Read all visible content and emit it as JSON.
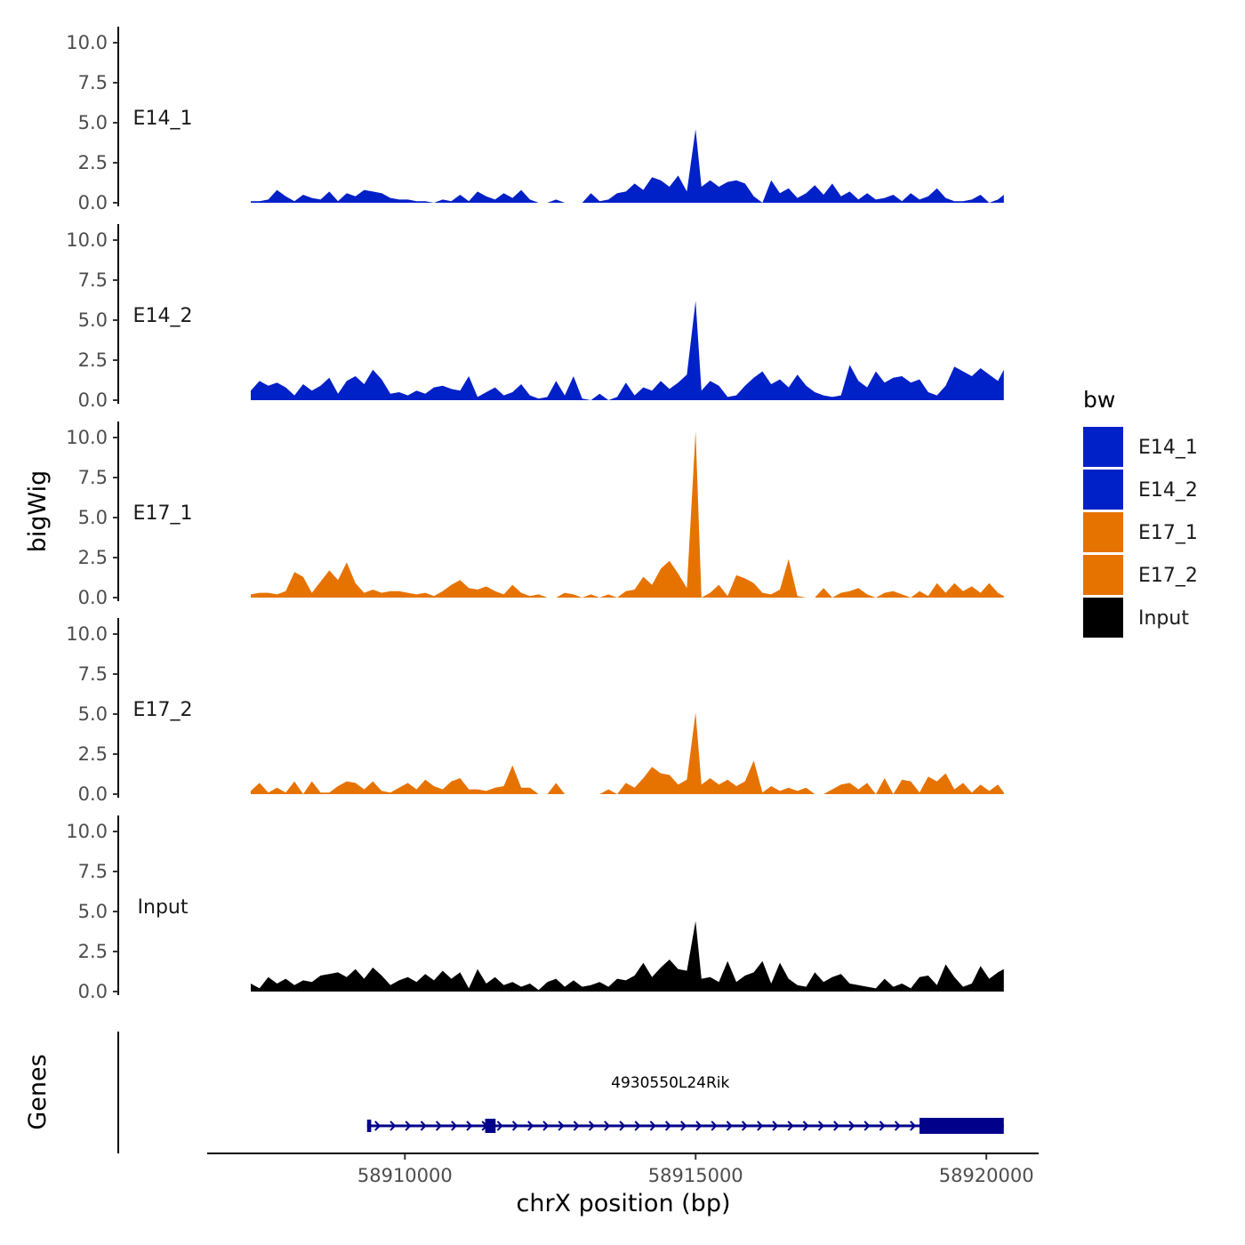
{
  "chart_data": {
    "type": "area",
    "subtype": "genome-browser-coverage-tracks",
    "ylabel": "bigWig",
    "xlabel": "chrX position (bp)",
    "gene_track_label": "Genes",
    "ylim": [
      0,
      10.5
    ],
    "yticks": [
      0,
      2.5,
      5,
      7.5,
      10
    ],
    "ytick_labels": [
      "0.0",
      "2.5",
      "5.0",
      "7.5",
      "10.0"
    ],
    "xlim": [
      58906600,
      58920900
    ],
    "xticks": [
      58910000,
      58915000,
      58920000
    ],
    "xtick_labels": [
      "58910000",
      "58915000",
      "58920000"
    ],
    "legend": {
      "title": "bw",
      "position": "right",
      "entries": [
        {
          "label": "E14_1",
          "color": "#0020c8"
        },
        {
          "label": "E14_2",
          "color": "#0020c8"
        },
        {
          "label": "E17_1",
          "color": "#e67300"
        },
        {
          "label": "E17_2",
          "color": "#e67300"
        },
        {
          "label": "Input",
          "color": "#000000"
        }
      ]
    },
    "series": [
      {
        "name": "E14_1",
        "color": "#0020c8",
        "x": [
          58907350,
          58907500,
          58907650,
          58907800,
          58907950,
          58908100,
          58908250,
          58908400,
          58908550,
          58908700,
          58908850,
          58909000,
          58909150,
          58909300,
          58909450,
          58909600,
          58909750,
          58909900,
          58910050,
          58910200,
          58910350,
          58910500,
          58910650,
          58910800,
          58910950,
          58911100,
          58911250,
          58911400,
          58911550,
          58911700,
          58911850,
          58912000,
          58912150,
          58912300,
          58912450,
          58912600,
          58912750,
          58912900,
          58913050,
          58913200,
          58913350,
          58913500,
          58913650,
          58913800,
          58913950,
          58914100,
          58914250,
          58914400,
          58914550,
          58914700,
          58914850,
          58915000,
          58915100,
          58915250,
          58915400,
          58915550,
          58915700,
          58915850,
          58916000,
          58916150,
          58916300,
          58916450,
          58916600,
          58916750,
          58916900,
          58917050,
          58917200,
          58917350,
          58917500,
          58917650,
          58917800,
          58917950,
          58918100,
          58918250,
          58918400,
          58918550,
          58918700,
          58918850,
          58919000,
          58919150,
          58919300,
          58919450,
          58919600,
          58919750,
          58919900,
          58920050,
          58920200,
          58920300
        ],
        "values": [
          0.1,
          0.1,
          0.2,
          0.8,
          0.4,
          0.1,
          0.5,
          0.3,
          0.2,
          0.7,
          0.1,
          0.6,
          0.4,
          0.8,
          0.7,
          0.6,
          0.3,
          0.2,
          0.2,
          0.1,
          0.1,
          0.0,
          0.2,
          0.1,
          0.5,
          0.1,
          0.7,
          0.4,
          0.2,
          0.6,
          0.3,
          0.8,
          0.2,
          0.0,
          0.0,
          0.2,
          0.0,
          0.0,
          0.0,
          0.6,
          0.1,
          0.2,
          0.6,
          0.7,
          1.2,
          0.8,
          1.6,
          1.4,
          1.0,
          1.7,
          0.7,
          4.6,
          1.0,
          1.4,
          1.0,
          1.3,
          1.4,
          1.2,
          0.4,
          0.0,
          1.4,
          0.6,
          0.9,
          0.3,
          0.6,
          1.1,
          0.5,
          1.2,
          0.4,
          0.7,
          0.2,
          0.6,
          0.2,
          0.3,
          0.5,
          0.1,
          0.6,
          0.2,
          0.4,
          0.9,
          0.3,
          0.1,
          0.1,
          0.2,
          0.5,
          0.0,
          0.2,
          0.5
        ]
      },
      {
        "name": "E14_2",
        "color": "#0020c8",
        "x": [
          58907350,
          58907500,
          58907650,
          58907800,
          58907950,
          58908100,
          58908250,
          58908400,
          58908550,
          58908700,
          58908850,
          58909000,
          58909150,
          58909300,
          58909450,
          58909600,
          58909750,
          58909900,
          58910050,
          58910200,
          58910350,
          58910500,
          58910650,
          58910800,
          58910950,
          58911100,
          58911250,
          58911400,
          58911550,
          58911700,
          58911850,
          58912000,
          58912150,
          58912300,
          58912450,
          58912600,
          58912750,
          58912900,
          58913050,
          58913200,
          58913350,
          58913500,
          58913650,
          58913800,
          58913950,
          58914100,
          58914250,
          58914400,
          58914550,
          58914700,
          58914850,
          58915000,
          58915100,
          58915250,
          58915400,
          58915550,
          58915700,
          58915850,
          58916000,
          58916150,
          58916300,
          58916450,
          58916600,
          58916750,
          58916900,
          58917050,
          58917200,
          58917350,
          58917500,
          58917650,
          58917800,
          58917950,
          58918100,
          58918250,
          58918400,
          58918550,
          58918700,
          58918850,
          58919000,
          58919150,
          58919300,
          58919450,
          58919600,
          58919750,
          58919900,
          58920050,
          58920200,
          58920300
        ],
        "values": [
          0.6,
          1.2,
          0.9,
          1.1,
          0.8,
          0.3,
          1.0,
          0.6,
          0.9,
          1.4,
          0.4,
          1.2,
          1.5,
          1.0,
          1.9,
          1.3,
          0.4,
          0.5,
          0.3,
          0.6,
          0.4,
          0.8,
          0.9,
          0.7,
          0.6,
          1.5,
          0.2,
          0.5,
          0.8,
          0.3,
          0.5,
          1.0,
          0.3,
          0.1,
          0.2,
          1.2,
          0.3,
          1.5,
          0.1,
          0.0,
          0.4,
          0.0,
          0.2,
          1.1,
          0.3,
          0.8,
          0.6,
          1.2,
          0.7,
          1.1,
          1.6,
          6.2,
          0.6,
          1.2,
          0.9,
          0.2,
          0.3,
          0.9,
          1.4,
          1.8,
          1.0,
          1.3,
          0.8,
          1.6,
          0.9,
          0.5,
          0.3,
          0.2,
          0.3,
          2.2,
          1.2,
          0.8,
          1.8,
          1.1,
          1.4,
          1.5,
          1.1,
          1.3,
          0.5,
          0.3,
          0.9,
          2.1,
          1.8,
          1.5,
          2.0,
          1.6,
          1.2,
          1.9
        ]
      },
      {
        "name": "E17_1",
        "color": "#e67300",
        "x": [
          58907350,
          58907500,
          58907650,
          58907800,
          58907950,
          58908100,
          58908250,
          58908400,
          58908550,
          58908700,
          58908850,
          58909000,
          58909150,
          58909300,
          58909450,
          58909600,
          58909750,
          58909900,
          58910050,
          58910200,
          58910350,
          58910500,
          58910650,
          58910800,
          58910950,
          58911100,
          58911250,
          58911400,
          58911550,
          58911700,
          58911850,
          58912000,
          58912150,
          58912300,
          58912450,
          58912600,
          58912750,
          58912900,
          58913050,
          58913200,
          58913350,
          58913500,
          58913650,
          58913800,
          58913950,
          58914100,
          58914250,
          58914400,
          58914550,
          58914700,
          58914850,
          58915000,
          58915100,
          58915250,
          58915400,
          58915550,
          58915700,
          58915850,
          58916000,
          58916150,
          58916300,
          58916450,
          58916600,
          58916750,
          58916900,
          58917050,
          58917200,
          58917350,
          58917500,
          58917650,
          58917800,
          58917950,
          58918100,
          58918250,
          58918400,
          58918550,
          58918700,
          58918850,
          58919000,
          58919150,
          58919300,
          58919450,
          58919600,
          58919750,
          58919900,
          58920050,
          58920200,
          58920300
        ],
        "values": [
          0.2,
          0.3,
          0.3,
          0.2,
          0.4,
          1.6,
          1.3,
          0.3,
          1.0,
          1.7,
          1.1,
          2.2,
          0.9,
          0.3,
          0.5,
          0.3,
          0.4,
          0.4,
          0.3,
          0.2,
          0.3,
          0.1,
          0.4,
          0.8,
          1.1,
          0.6,
          0.5,
          0.7,
          0.4,
          0.2,
          0.8,
          0.3,
          0.1,
          0.2,
          0.0,
          0.0,
          0.3,
          0.2,
          0.0,
          0.2,
          0.0,
          0.2,
          0.0,
          0.4,
          0.5,
          1.3,
          0.8,
          1.8,
          2.3,
          1.5,
          0.6,
          10.4,
          0.0,
          0.3,
          0.8,
          0.1,
          1.4,
          1.2,
          0.9,
          0.3,
          0.2,
          0.5,
          2.4,
          0.1,
          0.0,
          0.0,
          0.6,
          0.0,
          0.3,
          0.4,
          0.6,
          0.2,
          0.0,
          0.3,
          0.4,
          0.2,
          0.0,
          0.4,
          0.1,
          0.9,
          0.3,
          0.9,
          0.4,
          0.7,
          0.3,
          0.9,
          0.3,
          0.1
        ]
      },
      {
        "name": "E17_2",
        "color": "#e67300",
        "x": [
          58907350,
          58907500,
          58907650,
          58907800,
          58907950,
          58908100,
          58908250,
          58908400,
          58908550,
          58908700,
          58908850,
          58909000,
          58909150,
          58909300,
          58909450,
          58909600,
          58909750,
          58909900,
          58910050,
          58910200,
          58910350,
          58910500,
          58910650,
          58910800,
          58910950,
          58911100,
          58911250,
          58911400,
          58911550,
          58911700,
          58911850,
          58912000,
          58912150,
          58912300,
          58912450,
          58912600,
          58912750,
          58912900,
          58913050,
          58913200,
          58913350,
          58913500,
          58913650,
          58913800,
          58913950,
          58914100,
          58914250,
          58914400,
          58914550,
          58914700,
          58914850,
          58915000,
          58915100,
          58915250,
          58915400,
          58915550,
          58915700,
          58915850,
          58916000,
          58916150,
          58916300,
          58916450,
          58916600,
          58916750,
          58916900,
          58917050,
          58917200,
          58917350,
          58917500,
          58917650,
          58917800,
          58917950,
          58918100,
          58918250,
          58918400,
          58918550,
          58918700,
          58918850,
          58919000,
          58919150,
          58919300,
          58919450,
          58919600,
          58919750,
          58919900,
          58920050,
          58920200,
          58920300
        ],
        "values": [
          0.2,
          0.7,
          0.1,
          0.4,
          0.1,
          0.8,
          0.0,
          0.8,
          0.1,
          0.1,
          0.5,
          0.8,
          0.7,
          0.3,
          0.8,
          0.2,
          0.1,
          0.4,
          0.7,
          0.3,
          0.9,
          0.5,
          0.3,
          0.8,
          1.0,
          0.3,
          0.3,
          0.2,
          0.4,
          0.5,
          1.8,
          0.4,
          0.4,
          0.0,
          0.0,
          0.7,
          0.0,
          0.0,
          0.0,
          0.0,
          0.0,
          0.3,
          0.0,
          0.7,
          0.4,
          1.0,
          1.7,
          1.3,
          1.2,
          0.6,
          0.9,
          5.1,
          0.6,
          1.0,
          0.6,
          0.9,
          0.5,
          0.8,
          2.1,
          0.1,
          0.5,
          0.2,
          0.4,
          0.2,
          0.4,
          0.0,
          0.0,
          0.3,
          0.6,
          0.7,
          0.3,
          0.7,
          0.0,
          1.0,
          0.0,
          0.9,
          0.8,
          0.1,
          1.1,
          0.8,
          1.3,
          0.3,
          0.7,
          0.1,
          0.6,
          0.2,
          0.6,
          0.1
        ]
      },
      {
        "name": "Input",
        "color": "#000000",
        "x": [
          58907350,
          58907500,
          58907650,
          58907800,
          58907950,
          58908100,
          58908250,
          58908400,
          58908550,
          58908700,
          58908850,
          58909000,
          58909150,
          58909300,
          58909450,
          58909600,
          58909750,
          58909900,
          58910050,
          58910200,
          58910350,
          58910500,
          58910650,
          58910800,
          58910950,
          58911100,
          58911250,
          58911400,
          58911550,
          58911700,
          58911850,
          58912000,
          58912150,
          58912300,
          58912450,
          58912600,
          58912750,
          58912900,
          58913050,
          58913200,
          58913350,
          58913500,
          58913650,
          58913800,
          58913950,
          58914100,
          58914250,
          58914400,
          58914550,
          58914700,
          58914850,
          58915000,
          58915100,
          58915250,
          58915400,
          58915550,
          58915700,
          58915850,
          58916000,
          58916150,
          58916300,
          58916450,
          58916600,
          58916750,
          58916900,
          58917050,
          58917200,
          58917350,
          58917500,
          58917650,
          58917800,
          58917950,
          58918100,
          58918250,
          58918400,
          58918550,
          58918700,
          58918850,
          58919000,
          58919150,
          58919300,
          58919450,
          58919600,
          58919750,
          58919900,
          58920050,
          58920200,
          58920300
        ],
        "values": [
          0.5,
          0.2,
          0.9,
          0.5,
          0.8,
          0.4,
          0.7,
          0.6,
          1.0,
          1.1,
          1.2,
          0.9,
          1.4,
          0.8,
          1.5,
          1.0,
          0.4,
          0.7,
          0.9,
          0.6,
          1.1,
          0.7,
          1.3,
          0.8,
          1.2,
          0.2,
          1.4,
          0.5,
          0.9,
          0.4,
          0.6,
          0.3,
          0.5,
          0.1,
          0.6,
          0.8,
          0.3,
          0.7,
          0.3,
          0.4,
          0.6,
          0.3,
          0.8,
          0.7,
          1.0,
          1.8,
          0.9,
          1.5,
          2.0,
          1.4,
          1.3,
          4.4,
          0.8,
          0.9,
          0.6,
          1.9,
          0.6,
          1.0,
          1.2,
          1.9,
          0.5,
          1.8,
          0.8,
          0.4,
          0.3,
          1.2,
          0.6,
          0.9,
          1.1,
          0.5,
          0.4,
          0.3,
          0.2,
          0.8,
          0.3,
          0.5,
          0.2,
          0.9,
          1.0,
          0.4,
          1.7,
          0.9,
          0.3,
          0.5,
          1.6,
          0.8,
          1.2,
          1.4
        ]
      }
    ],
    "genes": [
      {
        "name": "4930550L24Rik",
        "color": "#00008b",
        "strand": "+",
        "start": 58909350,
        "end": 58920300,
        "exons": [
          [
            58909350,
            58909420
          ],
          [
            58911380,
            58911560
          ],
          [
            58918850,
            58920300
          ]
        ]
      }
    ]
  }
}
